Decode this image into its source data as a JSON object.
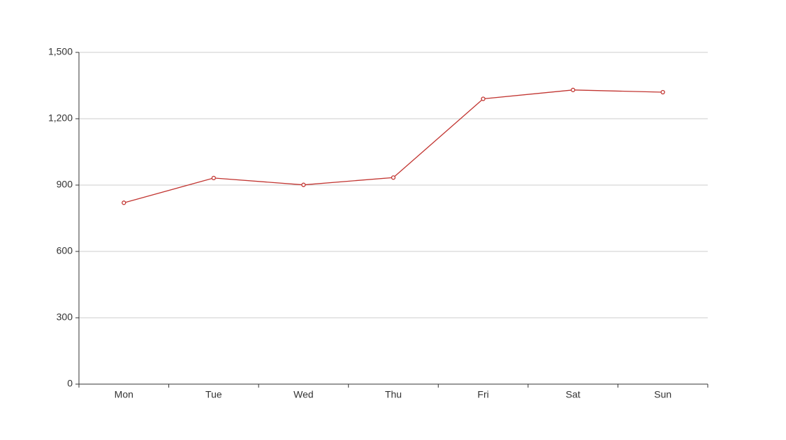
{
  "chart_data": {
    "type": "line",
    "categories": [
      "Mon",
      "Tue",
      "Wed",
      "Thu",
      "Fri",
      "Sat",
      "Sun"
    ],
    "values": [
      820,
      932,
      901,
      934,
      1290,
      1330,
      1320
    ],
    "color": "#c23531",
    "ylim": [
      0,
      1500
    ],
    "yticks": [
      0,
      300,
      600,
      900,
      {
        "value": 1200,
        "label": "1,200"
      },
      {
        "value": 1500,
        "label": "1,500"
      }
    ],
    "grid": true
  }
}
